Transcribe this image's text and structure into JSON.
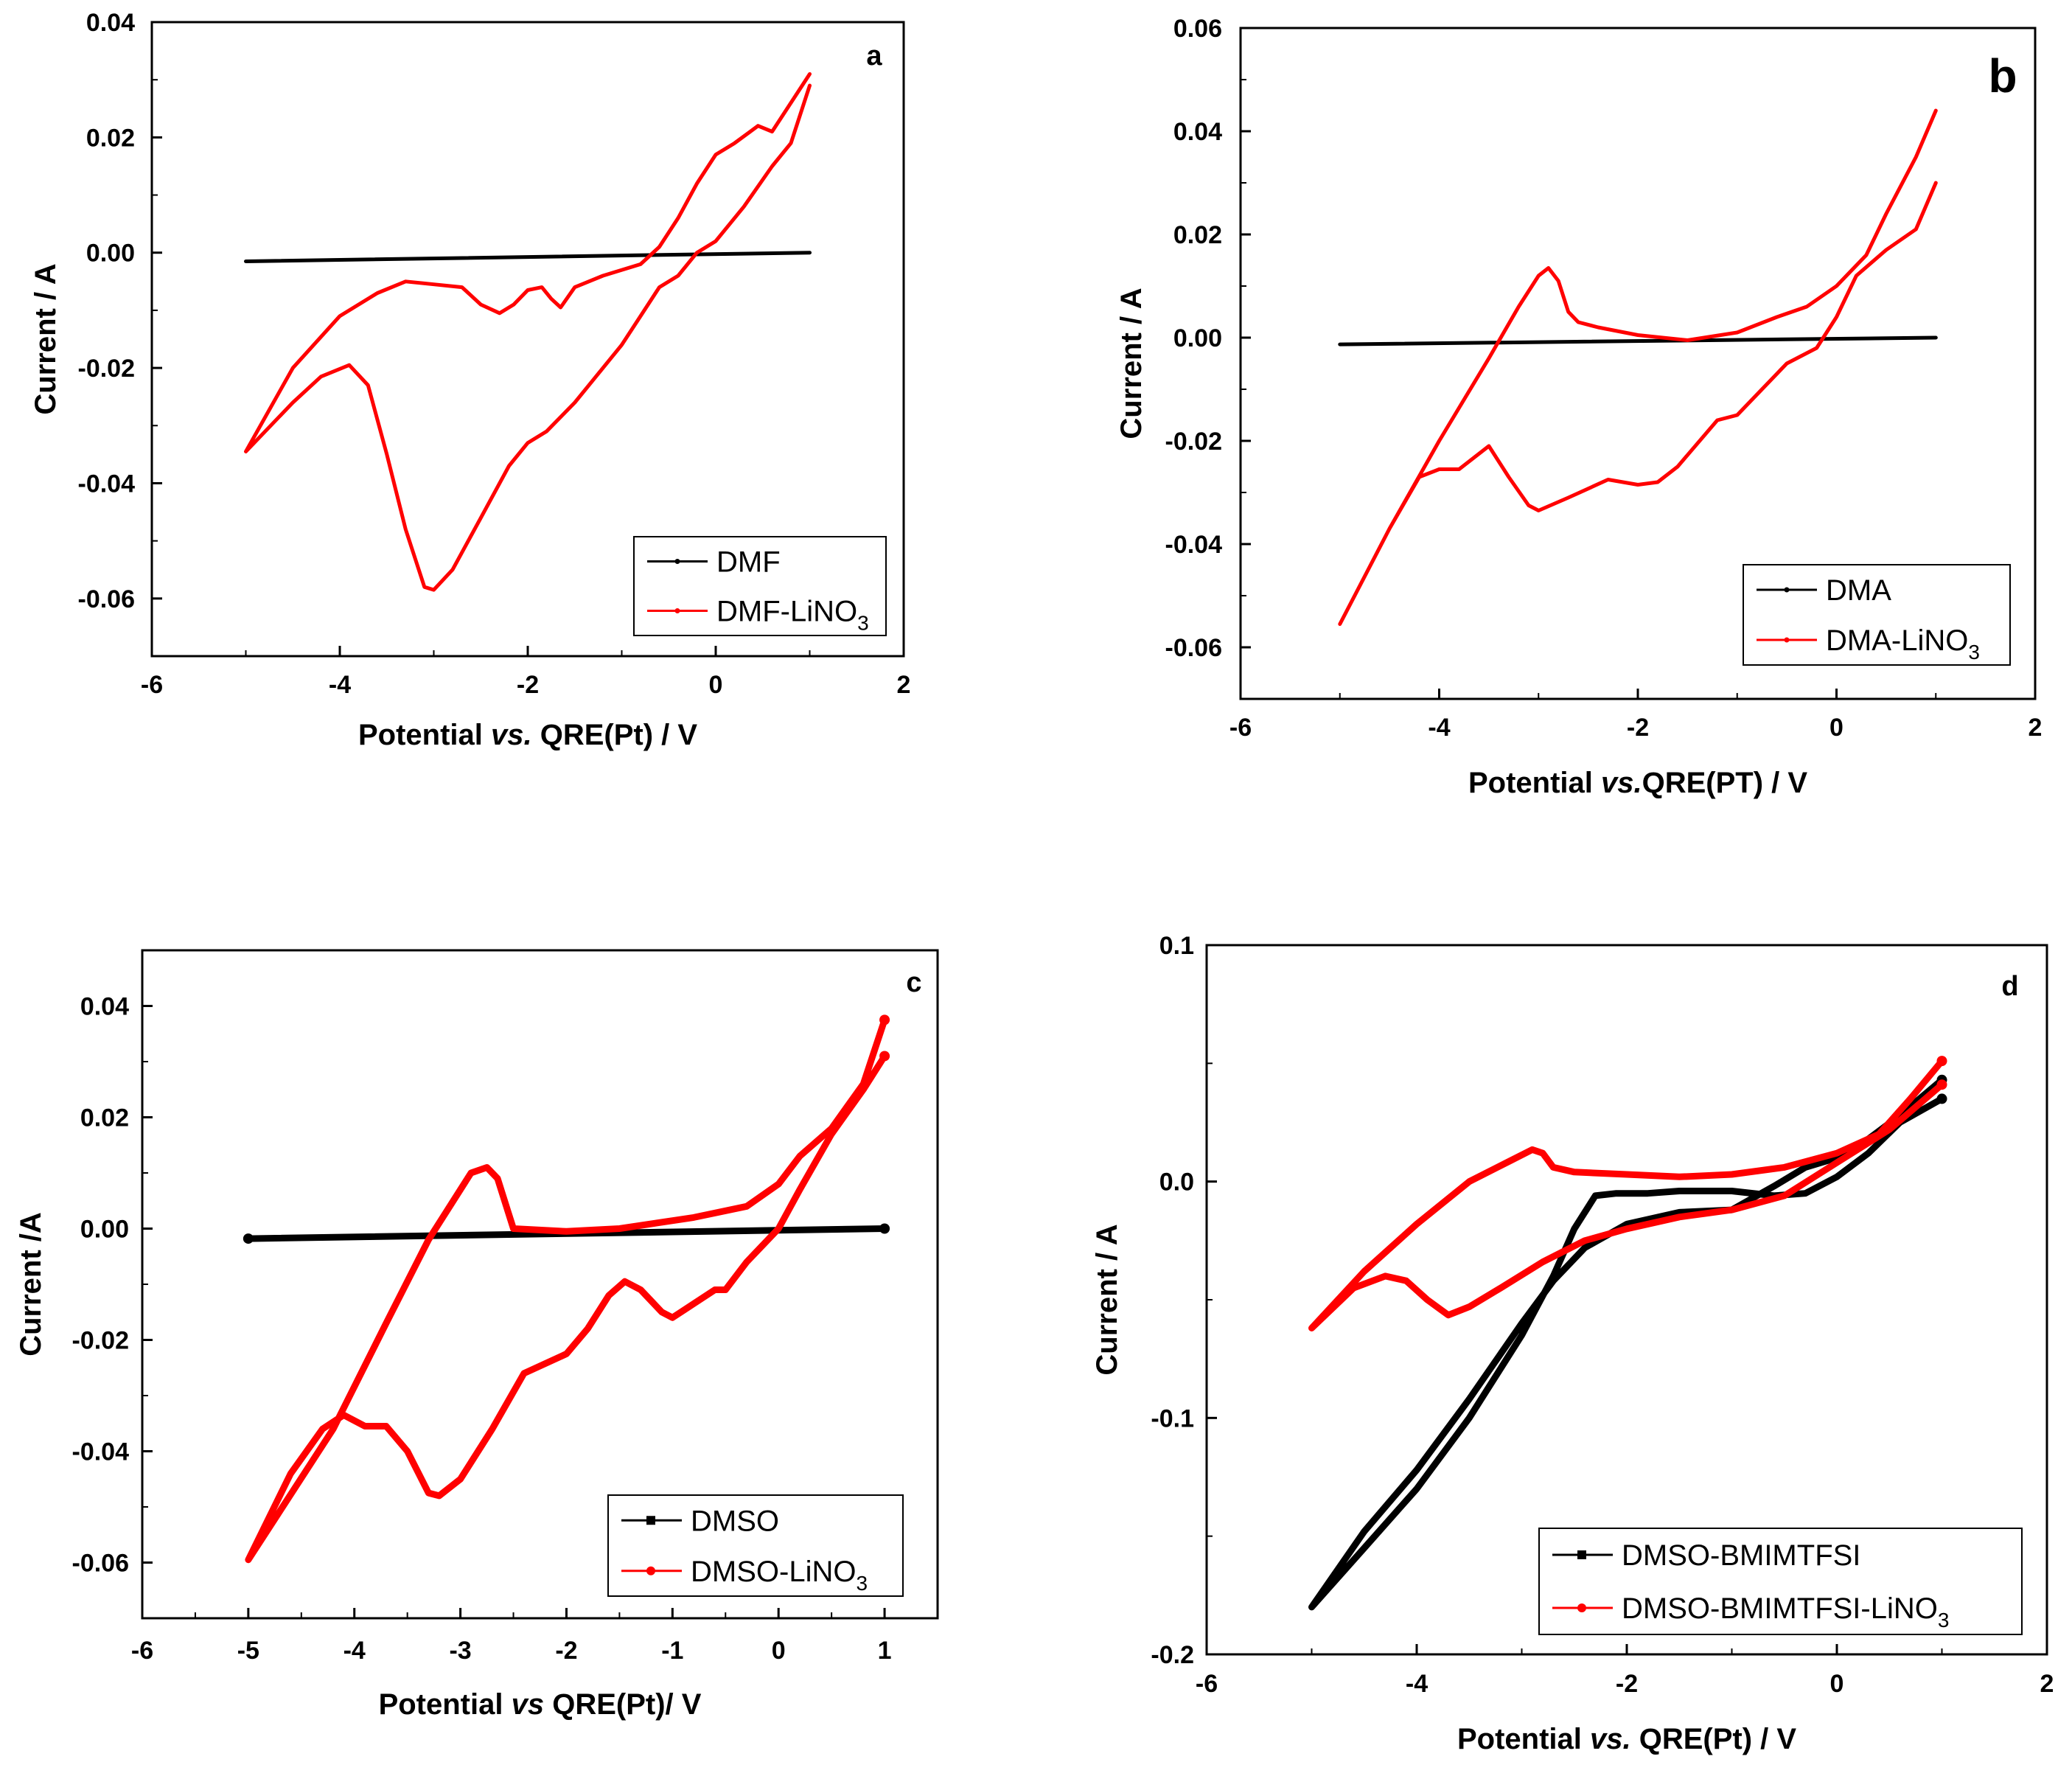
{
  "chart_data": [
    {
      "type": "line",
      "panel": "a",
      "title": "",
      "xlabel_parts": [
        "Potential ",
        "vs.",
        " QRE(Pt) / V"
      ],
      "ylabel": "Current / A",
      "xlim": [
        -6,
        2
      ],
      "ylim": [
        -0.07,
        0.04
      ],
      "xticks": [
        "-6",
        "-4",
        "-2",
        "0",
        "2"
      ],
      "yticks": [
        "0.04",
        "0.02",
        "0.00",
        "-0.02",
        "-0.04",
        "-0.06"
      ],
      "legend_position": "bottom-right",
      "series": [
        {
          "name": "DMF",
          "name_parts": [
            "DMF",
            ""
          ],
          "color": "#000000",
          "points": [
            [
              -5.0,
              -0.0015
            ],
            [
              1.0,
              0.0
            ]
          ]
        },
        {
          "name": "DMF-LiNO3",
          "name_parts": [
            "DMF-LiNO",
            "3"
          ],
          "color": "#ff0000",
          "points": [
            [
              1.0,
              0.031
            ],
            [
              0.6,
              0.021
            ],
            [
              0.45,
              0.022
            ],
            [
              0.2,
              0.019
            ],
            [
              0.0,
              0.017
            ],
            [
              -0.2,
              0.012
            ],
            [
              -0.4,
              0.006
            ],
            [
              -0.6,
              0.001
            ],
            [
              -0.8,
              -0.002
            ],
            [
              -1.2,
              -0.004
            ],
            [
              -1.5,
              -0.006
            ],
            [
              -1.65,
              -0.0095
            ],
            [
              -1.75,
              -0.008
            ],
            [
              -1.85,
              -0.006
            ],
            [
              -2.0,
              -0.0065
            ],
            [
              -2.15,
              -0.009
            ],
            [
              -2.3,
              -0.0105
            ],
            [
              -2.5,
              -0.009
            ],
            [
              -2.7,
              -0.006
            ],
            [
              -3.0,
              -0.0055
            ],
            [
              -3.3,
              -0.005
            ],
            [
              -3.6,
              -0.007
            ],
            [
              -4.0,
              -0.011
            ],
            [
              -4.5,
              -0.02
            ],
            [
              -5.0,
              -0.0345
            ],
            [
              -4.5,
              -0.026
            ],
            [
              -4.2,
              -0.0215
            ],
            [
              -3.9,
              -0.0195
            ],
            [
              -3.7,
              -0.023
            ],
            [
              -3.5,
              -0.035
            ],
            [
              -3.3,
              -0.048
            ],
            [
              -3.1,
              -0.058
            ],
            [
              -3.0,
              -0.0585
            ],
            [
              -2.8,
              -0.055
            ],
            [
              -2.5,
              -0.046
            ],
            [
              -2.2,
              -0.037
            ],
            [
              -2.0,
              -0.033
            ],
            [
              -1.8,
              -0.031
            ],
            [
              -1.5,
              -0.026
            ],
            [
              -1.3,
              -0.022
            ],
            [
              -1.0,
              -0.016
            ],
            [
              -0.8,
              -0.011
            ],
            [
              -0.6,
              -0.006
            ],
            [
              -0.4,
              -0.004
            ],
            [
              -0.2,
              0.0
            ],
            [
              0.0,
              0.002
            ],
            [
              0.3,
              0.008
            ],
            [
              0.6,
              0.015
            ],
            [
              0.8,
              0.019
            ],
            [
              1.0,
              0.029
            ]
          ]
        }
      ]
    },
    {
      "type": "line",
      "panel": "b",
      "title": "",
      "xlabel_parts": [
        "Potential ",
        "vs.",
        "QRE(PT) / V"
      ],
      "ylabel": "Current / A",
      "xlim": [
        -6,
        2
      ],
      "ylim": [
        -0.07,
        0.06
      ],
      "xticks": [
        "-6",
        "-4",
        "-2",
        "0",
        "2"
      ],
      "yticks": [
        "0.06",
        "0.04",
        "0.02",
        "0.00",
        "-0.02",
        "-0.04",
        "-0.06"
      ],
      "legend_position": "bottom-right",
      "series": [
        {
          "name": "DMA",
          "name_parts": [
            "DMA",
            ""
          ],
          "color": "#000000",
          "points": [
            [
              -5.0,
              -0.0013
            ],
            [
              1.0,
              0.0
            ]
          ]
        },
        {
          "name": "DMA-LiNO3",
          "name_parts": [
            "DMA-LiNO",
            "3"
          ],
          "color": "#ff0000",
          "points": [
            [
              1.0,
              0.044
            ],
            [
              0.8,
              0.035
            ],
            [
              0.5,
              0.024
            ],
            [
              0.3,
              0.016
            ],
            [
              0.0,
              0.01
            ],
            [
              -0.3,
              0.006
            ],
            [
              -0.6,
              0.004
            ],
            [
              -1.0,
              0.001
            ],
            [
              -1.5,
              -0.0005
            ],
            [
              -2.0,
              0.0005
            ],
            [
              -2.4,
              0.002
            ],
            [
              -2.6,
              0.003
            ],
            [
              -2.7,
              0.005
            ],
            [
              -2.8,
              0.011
            ],
            [
              -2.9,
              0.0135
            ],
            [
              -3.0,
              0.012
            ],
            [
              -3.2,
              0.006
            ],
            [
              -3.5,
              -0.004
            ],
            [
              -4.0,
              -0.02
            ],
            [
              -4.5,
              -0.037
            ],
            [
              -5.0,
              -0.0555
            ],
            [
              -4.5,
              -0.037
            ],
            [
              -4.2,
              -0.027
            ],
            [
              -4.0,
              -0.0255
            ],
            [
              -3.8,
              -0.0255
            ],
            [
              -3.5,
              -0.021
            ],
            [
              -3.3,
              -0.027
            ],
            [
              -3.1,
              -0.0325
            ],
            [
              -3.0,
              -0.0335
            ],
            [
              -2.7,
              -0.031
            ],
            [
              -2.3,
              -0.0275
            ],
            [
              -2.0,
              -0.0285
            ],
            [
              -1.8,
              -0.028
            ],
            [
              -1.6,
              -0.025
            ],
            [
              -1.2,
              -0.016
            ],
            [
              -1.0,
              -0.015
            ],
            [
              -0.8,
              -0.011
            ],
            [
              -0.5,
              -0.005
            ],
            [
              -0.2,
              -0.002
            ],
            [
              0.0,
              0.004
            ],
            [
              0.2,
              0.012
            ],
            [
              0.5,
              0.017
            ],
            [
              0.8,
              0.021
            ],
            [
              1.0,
              0.03
            ]
          ]
        }
      ]
    },
    {
      "type": "line",
      "panel": "c",
      "title": "",
      "xlabel_parts": [
        "Potential ",
        "vs",
        " QRE(Pt)/ V"
      ],
      "ylabel": "Current /A",
      "xlim": [
        -6,
        1.5
      ],
      "ylim": [
        -0.07,
        0.05
      ],
      "xticks": [
        "-6",
        "-5",
        "-4",
        "-3",
        "-2",
        "-1",
        "0",
        "1"
      ],
      "yticks": [
        "0.04",
        "0.02",
        "0.00",
        "-0.02",
        "-0.04",
        "-0.06"
      ],
      "legend_position": "bottom-right",
      "series": [
        {
          "name": "DMSO",
          "name_parts": [
            "DMSO",
            ""
          ],
          "color": "#000000",
          "points": [
            [
              -5.0,
              -0.0018
            ],
            [
              1.0,
              0.0
            ]
          ]
        },
        {
          "name": "DMSO-LiNO3",
          "name_parts": [
            "DMSO-LiNO",
            "3"
          ],
          "color": "#ff0000",
          "points": [
            [
              1.0,
              0.0375
            ],
            [
              0.8,
              0.026
            ],
            [
              0.5,
              0.018
            ],
            [
              0.2,
              0.013
            ],
            [
              0.0,
              0.008
            ],
            [
              -0.3,
              0.004
            ],
            [
              -0.8,
              0.002
            ],
            [
              -1.5,
              0.0
            ],
            [
              -2.0,
              -0.0005
            ],
            [
              -2.5,
              0.0
            ],
            [
              -2.55,
              0.003
            ],
            [
              -2.65,
              0.009
            ],
            [
              -2.75,
              0.011
            ],
            [
              -2.9,
              0.01
            ],
            [
              -3.1,
              0.004
            ],
            [
              -3.3,
              -0.002
            ],
            [
              -3.7,
              -0.017
            ],
            [
              -4.2,
              -0.036
            ],
            [
              -5.0,
              -0.0595
            ],
            [
              -4.6,
              -0.044
            ],
            [
              -4.3,
              -0.036
            ],
            [
              -4.1,
              -0.0335
            ],
            [
              -3.9,
              -0.0355
            ],
            [
              -3.7,
              -0.0355
            ],
            [
              -3.5,
              -0.04
            ],
            [
              -3.3,
              -0.0475
            ],
            [
              -3.2,
              -0.048
            ],
            [
              -3.0,
              -0.045
            ],
            [
              -2.7,
              -0.036
            ],
            [
              -2.4,
              -0.026
            ],
            [
              -2.0,
              -0.0225
            ],
            [
              -1.8,
              -0.018
            ],
            [
              -1.6,
              -0.012
            ],
            [
              -1.45,
              -0.0095
            ],
            [
              -1.3,
              -0.011
            ],
            [
              -1.1,
              -0.015
            ],
            [
              -1.0,
              -0.016
            ],
            [
              -0.8,
              -0.0135
            ],
            [
              -0.6,
              -0.011
            ],
            [
              -0.5,
              -0.011
            ],
            [
              -0.3,
              -0.006
            ],
            [
              -0.1,
              -0.002
            ],
            [
              0.0,
              0.0
            ],
            [
              0.2,
              0.007
            ],
            [
              0.5,
              0.017
            ],
            [
              0.8,
              0.025
            ],
            [
              1.0,
              0.031
            ]
          ]
        }
      ]
    },
    {
      "type": "line",
      "panel": "d",
      "title": "",
      "xlabel_parts": [
        "Potential ",
        "vs.",
        " QRE(Pt) / V"
      ],
      "ylabel": "Current / A",
      "xlim": [
        -6,
        2
      ],
      "ylim": [
        -0.2,
        0.1
      ],
      "xticks": [
        "-6",
        "-4",
        "-2",
        "0",
        "2"
      ],
      "yticks": [
        "0.1",
        "0.0",
        "-0.1",
        "-0.2"
      ],
      "legend_position": "bottom-right",
      "series": [
        {
          "name": "DMSO-BMIMTFSI",
          "name_parts": [
            "DMSO-BMIMTFSI",
            ""
          ],
          "color": "#000000",
          "points": [
            [
              1.0,
              0.035
            ],
            [
              0.6,
              0.025
            ],
            [
              0.3,
              0.012
            ],
            [
              0.0,
              0.002
            ],
            [
              -0.3,
              -0.005
            ],
            [
              -0.6,
              -0.006
            ],
            [
              -1.0,
              -0.004
            ],
            [
              -1.5,
              -0.004
            ],
            [
              -1.8,
              -0.005
            ],
            [
              -2.1,
              -0.005
            ],
            [
              -2.3,
              -0.006
            ],
            [
              -2.5,
              -0.02
            ],
            [
              -2.7,
              -0.04
            ],
            [
              -3.0,
              -0.065
            ],
            [
              -3.5,
              -0.1
            ],
            [
              -4.0,
              -0.13
            ],
            [
              -4.5,
              -0.155
            ],
            [
              -5.0,
              -0.18
            ],
            [
              -4.5,
              -0.148
            ],
            [
              -4.0,
              -0.122
            ],
            [
              -3.5,
              -0.092
            ],
            [
              -3.0,
              -0.06
            ],
            [
              -2.7,
              -0.042
            ],
            [
              -2.4,
              -0.028
            ],
            [
              -2.0,
              -0.018
            ],
            [
              -1.5,
              -0.013
            ],
            [
              -1.0,
              -0.012
            ],
            [
              -0.6,
              -0.002
            ],
            [
              -0.3,
              0.006
            ],
            [
              0.0,
              0.01
            ],
            [
              0.3,
              0.018
            ],
            [
              0.6,
              0.028
            ],
            [
              1.0,
              0.043
            ]
          ]
        },
        {
          "name": "DMSO-BMIMTFSI-LiNO3",
          "name_parts": [
            "DMSO-BMIMTFSI-LiNO",
            "3"
          ],
          "color": "#ff0000",
          "points": [
            [
              1.0,
              0.051
            ],
            [
              0.7,
              0.035
            ],
            [
              0.4,
              0.02
            ],
            [
              0.0,
              0.012
            ],
            [
              -0.5,
              0.006
            ],
            [
              -1.0,
              0.003
            ],
            [
              -1.5,
              0.002
            ],
            [
              -2.0,
              0.003
            ],
            [
              -2.5,
              0.004
            ],
            [
              -2.7,
              0.006
            ],
            [
              -2.8,
              0.012
            ],
            [
              -2.9,
              0.0135
            ],
            [
              -3.1,
              0.009
            ],
            [
              -3.5,
              0.0
            ],
            [
              -4.0,
              -0.018
            ],
            [
              -4.5,
              -0.038
            ],
            [
              -5.0,
              -0.062
            ],
            [
              -4.6,
              -0.045
            ],
            [
              -4.3,
              -0.04
            ],
            [
              -4.1,
              -0.042
            ],
            [
              -3.9,
              -0.05
            ],
            [
              -3.7,
              -0.0565
            ],
            [
              -3.5,
              -0.053
            ],
            [
              -3.2,
              -0.045
            ],
            [
              -2.8,
              -0.034
            ],
            [
              -2.4,
              -0.025
            ],
            [
              -2.0,
              -0.02
            ],
            [
              -1.5,
              -0.015
            ],
            [
              -1.0,
              -0.012
            ],
            [
              -0.5,
              -0.006
            ],
            [
              0.0,
              0.008
            ],
            [
              0.5,
              0.022
            ],
            [
              1.0,
              0.041
            ]
          ]
        }
      ]
    }
  ],
  "panel_labels": [
    "a",
    "b",
    "c",
    "d"
  ]
}
